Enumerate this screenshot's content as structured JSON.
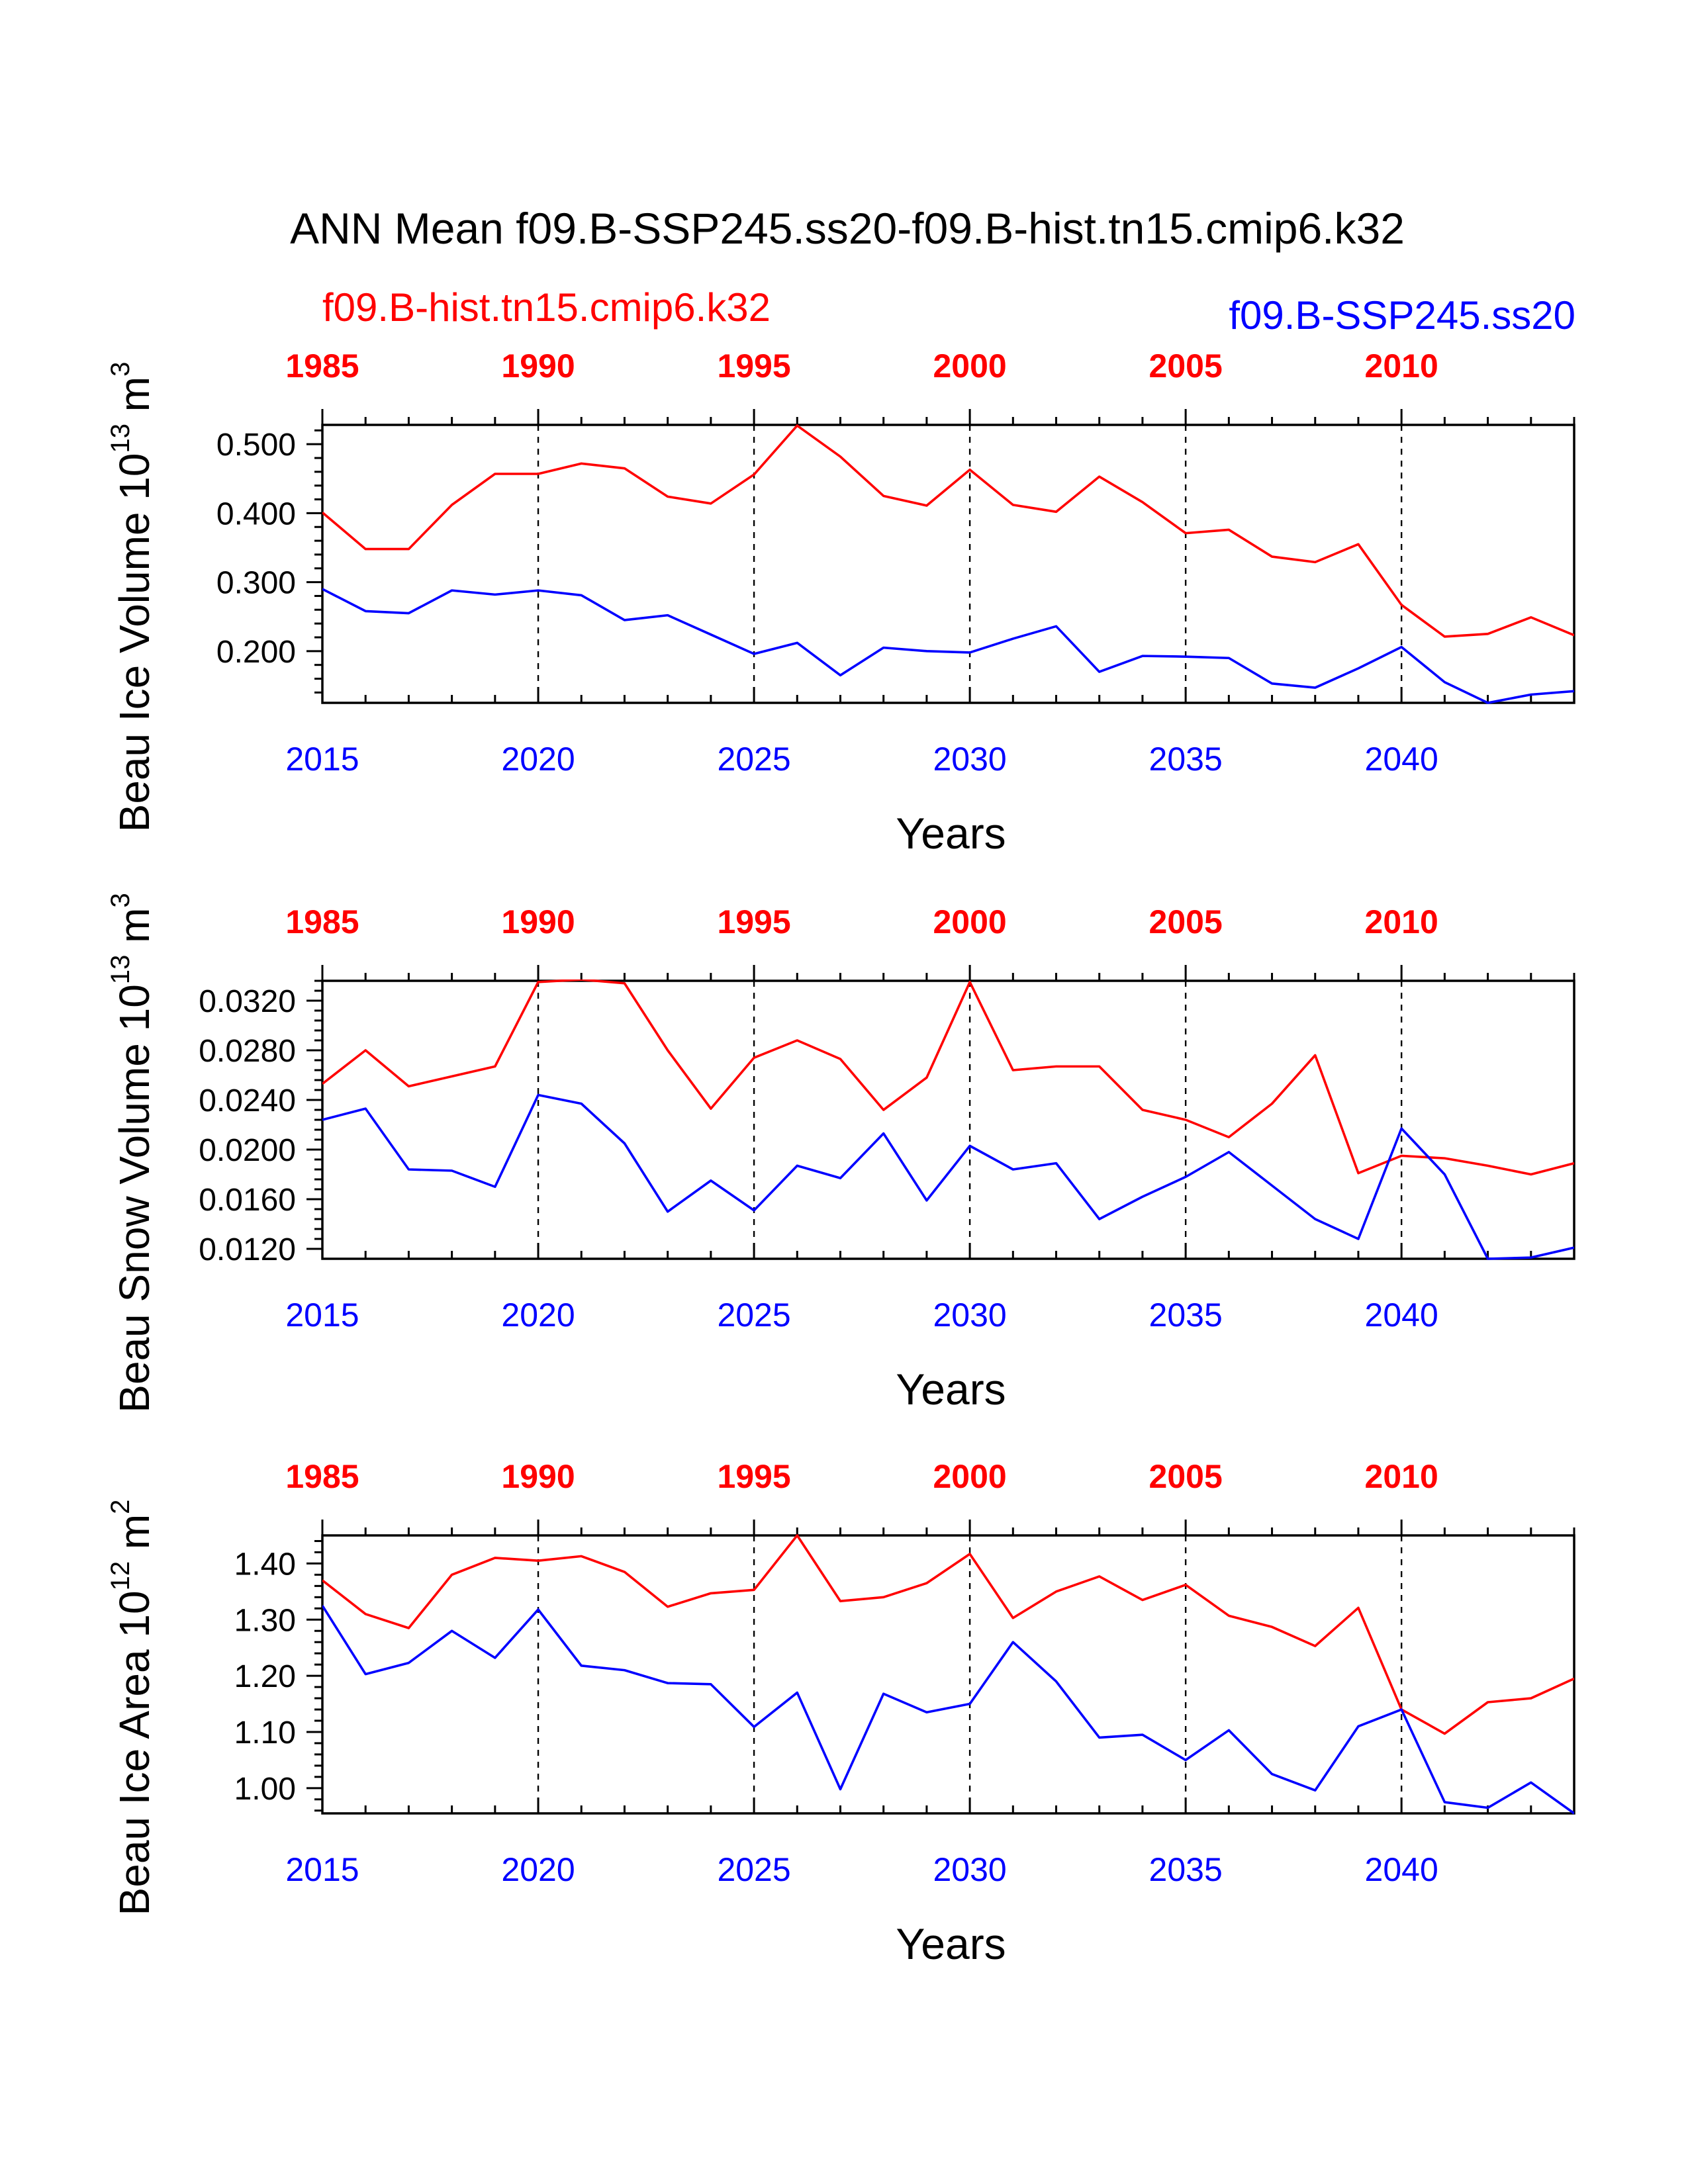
{
  "title": "ANN Mean f09.B-SSP245.ss20-f09.B-hist.tn15.cmip6.k32",
  "legend": {
    "left": "f09.B-hist.tn15.cmip6.k32",
    "right": "f09.B-SSP245.ss20"
  },
  "colors": {
    "hist": "#ff0000",
    "ssp": "#0000ff",
    "axis": "#000000",
    "grid": "#000000"
  },
  "chart_data": [
    {
      "type": "line",
      "ylabel_main": "Beau Ice Volume 10",
      "ylabel_exp": "13",
      "ylabel_unit": " m",
      "ylabel_unit_exp": "3",
      "xlabel": "Years",
      "xlim": [
        2015,
        2044
      ],
      "ylim": [
        0.125,
        0.528
      ],
      "yticks": [
        0.2,
        0.3,
        0.4,
        0.5
      ],
      "ytick_labels": [
        "0.200",
        "0.300",
        "0.400",
        "0.500"
      ],
      "yminor": 0.02,
      "ytick_start": 0.14,
      "xticks_bottom": [
        2015,
        2020,
        2025,
        2030,
        2035,
        2040
      ],
      "xticks_top_labels": [
        "1985",
        "1990",
        "1995",
        "2000",
        "2005",
        "2010"
      ],
      "grid_x": [
        2020,
        2025,
        2030,
        2035,
        2040
      ],
      "x": [
        2015,
        2016,
        2017,
        2018,
        2019,
        2020,
        2021,
        2022,
        2023,
        2024,
        2025,
        2026,
        2027,
        2028,
        2029,
        2030,
        2031,
        2032,
        2033,
        2034,
        2035,
        2036,
        2037,
        2038,
        2039,
        2040,
        2041,
        2042,
        2043,
        2044
      ],
      "series": [
        {
          "name": "f09.B-hist.tn15.cmip6.k32",
          "color": "#ff0000",
          "values": [
            0.401,
            0.348,
            0.348,
            0.412,
            0.457,
            0.457,
            0.472,
            0.465,
            0.424,
            0.414,
            0.456,
            0.527,
            0.482,
            0.425,
            0.411,
            0.463,
            0.412,
            0.402,
            0.453,
            0.416,
            0.371,
            0.376,
            0.337,
            0.329,
            0.355,
            0.267,
            0.221,
            0.225,
            0.249,
            0.223
          ]
        },
        {
          "name": "f09.B-SSP245.ss20",
          "color": "#0000ff",
          "values": [
            0.29,
            0.258,
            0.255,
            0.288,
            0.282,
            0.288,
            0.281,
            0.245,
            0.252,
            0.224,
            0.196,
            0.212,
            0.165,
            0.205,
            0.2,
            0.198,
            0.218,
            0.236,
            0.17,
            0.193,
            0.192,
            0.19,
            0.153,
            0.147,
            0.175,
            0.206,
            0.155,
            0.125,
            0.137,
            0.142
          ]
        }
      ]
    },
    {
      "type": "line",
      "ylabel_main": "Beau Snow Volume 10",
      "ylabel_exp": "13",
      "ylabel_unit": " m",
      "ylabel_unit_exp": "3",
      "xlabel": "Years",
      "xlim": [
        2015,
        2044
      ],
      "ylim": [
        0.0112,
        0.0336
      ],
      "yticks": [
        0.012,
        0.016,
        0.02,
        0.024,
        0.028,
        0.032
      ],
      "ytick_labels": [
        "0.0120",
        "0.0160",
        "0.0200",
        "0.0240",
        "0.0280",
        "0.0320"
      ],
      "yminor": 0.0008,
      "ytick_start": 0.012,
      "xticks_bottom": [
        2015,
        2020,
        2025,
        2030,
        2035,
        2040
      ],
      "xticks_top_labels": [
        "1985",
        "1990",
        "1995",
        "2000",
        "2005",
        "2010"
      ],
      "grid_x": [
        2020,
        2025,
        2030,
        2035,
        2040
      ],
      "x": [
        2015,
        2016,
        2017,
        2018,
        2019,
        2020,
        2021,
        2022,
        2023,
        2024,
        2025,
        2026,
        2027,
        2028,
        2029,
        2030,
        2031,
        2032,
        2033,
        2034,
        2035,
        2036,
        2037,
        2038,
        2039,
        2040,
        2041,
        2042,
        2043,
        2044
      ],
      "series": [
        {
          "name": "f09.B-hist.tn15.cmip6.k32",
          "color": "#ff0000",
          "values": [
            0.0253,
            0.028,
            0.0251,
            0.0259,
            0.0267,
            0.0335,
            0.0337,
            0.0334,
            0.028,
            0.0233,
            0.0274,
            0.0288,
            0.0273,
            0.0232,
            0.0258,
            0.0335,
            0.0264,
            0.0267,
            0.0267,
            0.0232,
            0.0224,
            0.021,
            0.0237,
            0.0276,
            0.0181,
            0.0195,
            0.0193,
            0.0187,
            0.018,
            0.0189
          ]
        },
        {
          "name": "f09.B-SSP245.ss20",
          "color": "#0000ff",
          "values": [
            0.0224,
            0.0233,
            0.0184,
            0.0183,
            0.017,
            0.0244,
            0.0237,
            0.0205,
            0.015,
            0.0175,
            0.0151,
            0.0187,
            0.0177,
            0.0213,
            0.0159,
            0.0203,
            0.0184,
            0.0189,
            0.0144,
            0.0162,
            0.0178,
            0.0198,
            0.0171,
            0.0144,
            0.0128,
            0.0217,
            0.018,
            0.0112,
            0.0113,
            0.0121
          ]
        }
      ]
    },
    {
      "type": "line",
      "ylabel_main": "Beau Ice Area 10",
      "ylabel_exp": "12",
      "ylabel_unit": " m",
      "ylabel_unit_exp": "2",
      "xlabel": "Years",
      "xlim": [
        2015,
        2044
      ],
      "ylim": [
        0.955,
        1.45
      ],
      "yticks": [
        1.0,
        1.1,
        1.2,
        1.3,
        1.4
      ],
      "ytick_labels": [
        "1.00",
        "1.10",
        "1.20",
        "1.30",
        "1.40"
      ],
      "yminor": 0.02,
      "ytick_start": 0.96,
      "xticks_bottom": [
        2015,
        2020,
        2025,
        2030,
        2035,
        2040
      ],
      "xticks_top_labels": [
        "1985",
        "1990",
        "1995",
        "2000",
        "2005",
        "2010"
      ],
      "grid_x": [
        2020,
        2025,
        2030,
        2035,
        2040
      ],
      "x": [
        2015,
        2016,
        2017,
        2018,
        2019,
        2020,
        2021,
        2022,
        2023,
        2024,
        2025,
        2026,
        2027,
        2028,
        2029,
        2030,
        2031,
        2032,
        2033,
        2034,
        2035,
        2036,
        2037,
        2038,
        2039,
        2040,
        2041,
        2042,
        2043,
        2044
      ],
      "series": [
        {
          "name": "f09.B-hist.tn15.cmip6.k32",
          "color": "#ff0000",
          "values": [
            1.37,
            1.31,
            1.285,
            1.38,
            1.41,
            1.405,
            1.413,
            1.385,
            1.323,
            1.347,
            1.353,
            1.45,
            1.333,
            1.34,
            1.365,
            1.417,
            1.303,
            1.35,
            1.377,
            1.335,
            1.362,
            1.307,
            1.287,
            1.253,
            1.321,
            1.14,
            1.097,
            1.153,
            1.16,
            1.195
          ]
        },
        {
          "name": "f09.B-SSP245.ss20",
          "color": "#0000ff",
          "values": [
            1.325,
            1.203,
            1.223,
            1.28,
            1.232,
            1.318,
            1.218,
            1.21,
            1.187,
            1.185,
            1.109,
            1.17,
            0.998,
            1.168,
            1.135,
            1.15,
            1.26,
            1.19,
            1.09,
            1.095,
            1.05,
            1.103,
            1.025,
            0.996,
            1.11,
            1.14,
            0.975,
            0.965,
            1.01,
            0.955
          ]
        }
      ]
    }
  ]
}
